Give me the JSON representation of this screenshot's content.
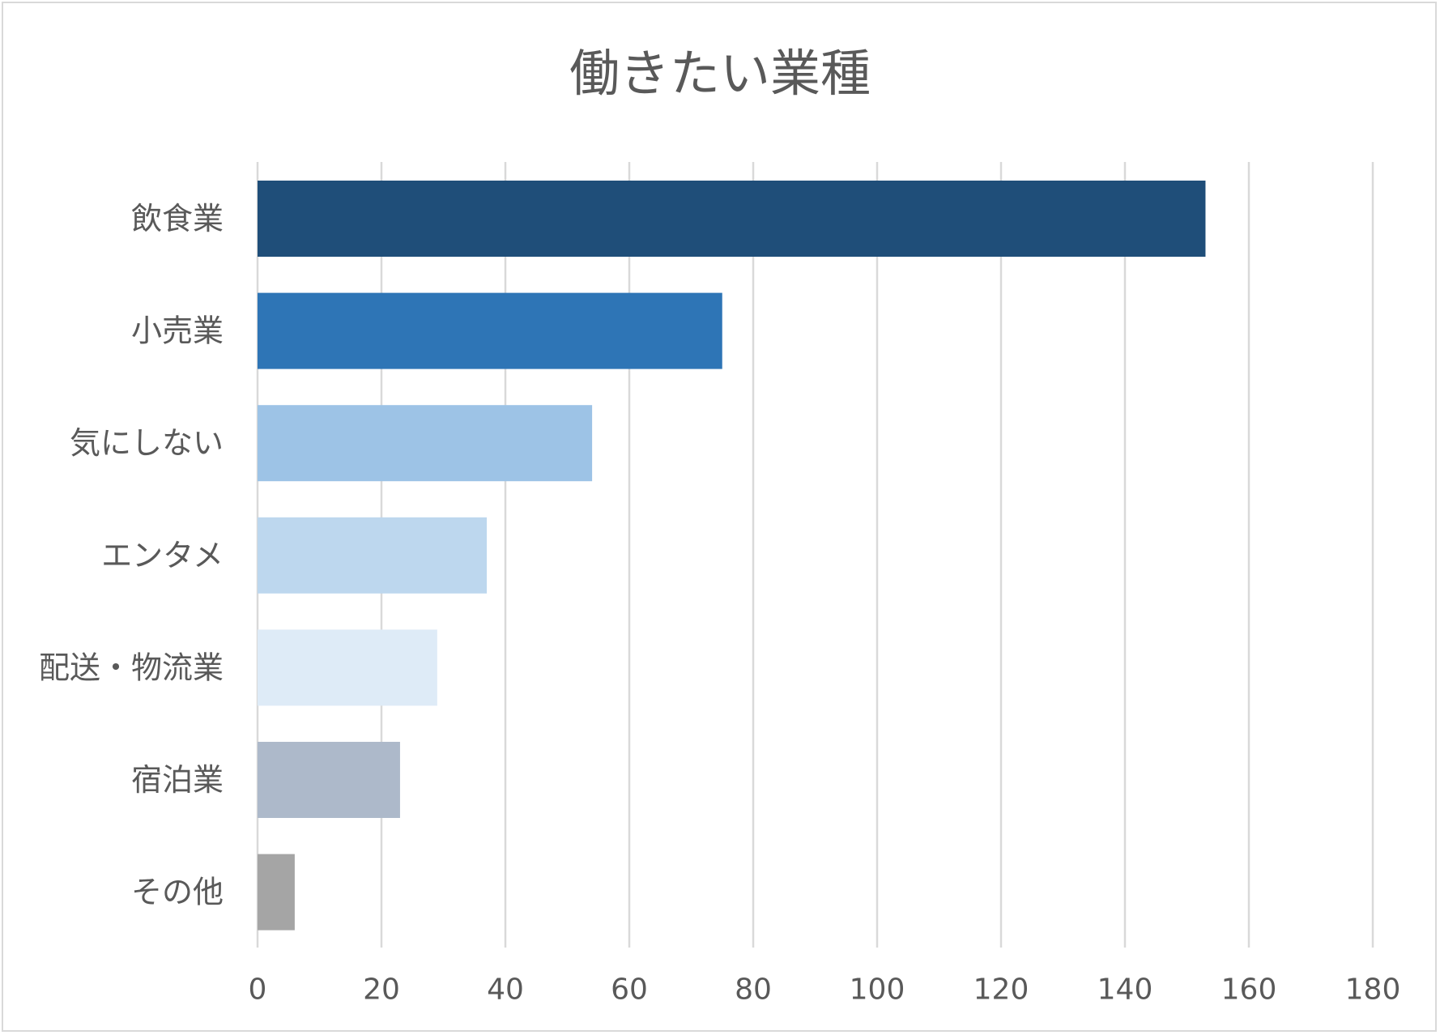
{
  "chart_data": {
    "type": "bar",
    "orientation": "horizontal",
    "title": "働きたい業種",
    "xlabel": "",
    "ylabel": "",
    "categories": [
      "飲食業",
      "小売業",
      "気にしない",
      "エンタメ",
      "配送・物流業",
      "宿泊業",
      "その他"
    ],
    "values": [
      153,
      75,
      54,
      37,
      29,
      23,
      6
    ],
    "colors": [
      "#1f4e79",
      "#2e75b6",
      "#9dc3e6",
      "#bdd7ee",
      "#deebf7",
      "#adb9ca",
      "#a5a5a5"
    ],
    "xlim": [
      0,
      180
    ],
    "xticks": [
      0,
      20,
      40,
      60,
      80,
      100,
      120,
      140,
      160,
      180
    ],
    "grid": true,
    "legend": "none"
  }
}
